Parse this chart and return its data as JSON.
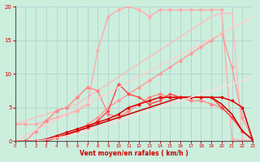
{
  "title": "",
  "xlabel": "Vent moyen/en rafales ( km/h )",
  "ylabel": "",
  "background_color": "#cceedd",
  "grid_color": "#aacccc",
  "xlim": [
    0,
    23
  ],
  "ylim": [
    0,
    20
  ],
  "yticks": [
    0,
    5,
    10,
    15,
    20
  ],
  "xticks": [
    0,
    1,
    2,
    3,
    4,
    5,
    6,
    7,
    8,
    9,
    10,
    11,
    12,
    13,
    14,
    15,
    16,
    17,
    18,
    19,
    20,
    21,
    22,
    23
  ],
  "series": [
    {
      "x": [
        0,
        1,
        2,
        3,
        4,
        5,
        6,
        7,
        8,
        9,
        10,
        11,
        12,
        13,
        14,
        15,
        16,
        17,
        18,
        19,
        20,
        21,
        22,
        23
      ],
      "y": [
        2.5,
        3,
        3.5,
        4,
        4.5,
        5,
        5.5,
        6.5,
        7.5,
        8.5,
        9.5,
        10.5,
        11.5,
        12.5,
        13.5,
        14.5,
        15.5,
        16.5,
        17.5,
        18.5,
        19.0,
        19.0,
        0.2,
        0.1
      ],
      "color": "#ffbbbb",
      "linewidth": 1.0,
      "marker": null,
      "markersize": 0,
      "linestyle": "-"
    },
    {
      "x": [
        0,
        1,
        2,
        3,
        4,
        5,
        6,
        7,
        8,
        9,
        10,
        11,
        12,
        13,
        14,
        15,
        16,
        17,
        18,
        19,
        20,
        21,
        22,
        23
      ],
      "y": [
        2.5,
        2.5,
        2.5,
        3.0,
        3.5,
        4.0,
        4.5,
        5.5,
        13.5,
        18.5,
        19.5,
        20,
        19.5,
        18.5,
        19.5,
        19.5,
        19.5,
        19.5,
        19.5,
        19.5,
        19.5,
        0.3,
        0.1,
        0.0
      ],
      "color": "#ffaaaa",
      "linewidth": 1.0,
      "marker": "o",
      "markersize": 2.0,
      "linestyle": "-"
    },
    {
      "x": [
        0,
        1,
        2,
        3,
        4,
        5,
        6,
        7,
        8,
        9,
        10,
        11,
        12,
        13,
        14,
        15,
        16,
        17,
        18,
        19,
        20,
        21,
        22,
        23
      ],
      "y": [
        0,
        0,
        0,
        0,
        0.5,
        1,
        1.5,
        2.5,
        3.5,
        5,
        6,
        7,
        8,
        9,
        10,
        11,
        12,
        13,
        14,
        15,
        16,
        11,
        3.5,
        0.3
      ],
      "color": "#ff9999",
      "linewidth": 1.0,
      "marker": "o",
      "markersize": 2.0,
      "linestyle": "-"
    },
    {
      "x": [
        0,
        1,
        2,
        3,
        4,
        5,
        6,
        7,
        8,
        9,
        10,
        11,
        12,
        13,
        14,
        15,
        16,
        17,
        18,
        19,
        20,
        21,
        22,
        23
      ],
      "y": [
        0,
        0,
        1.5,
        3,
        4.5,
        5,
        6.5,
        8,
        7.5,
        4,
        3.5,
        4.5,
        5.5,
        6.5,
        7,
        6.5,
        6.5,
        6,
        6,
        5.5,
        5,
        3.5,
        1.5,
        0.2
      ],
      "color": "#ff8888",
      "linewidth": 1.0,
      "marker": "D",
      "markersize": 2.0,
      "linestyle": "-"
    },
    {
      "x": [
        0,
        1,
        2,
        3,
        4,
        5,
        6,
        7,
        8,
        9,
        10,
        11,
        12,
        13,
        14,
        15,
        16,
        17,
        18,
        19,
        20,
        21,
        22,
        23
      ],
      "y": [
        0,
        0,
        0,
        0,
        0.5,
        1,
        1.5,
        2,
        3,
        4.5,
        8.5,
        7,
        6.5,
        5.5,
        6,
        7,
        6.5,
        6.5,
        6.5,
        6.5,
        5,
        3.5,
        1.5,
        0.2
      ],
      "color": "#ff4444",
      "linewidth": 1.0,
      "marker": "+",
      "markersize": 3.0,
      "linestyle": "-"
    },
    {
      "x": [
        0,
        1,
        2,
        3,
        4,
        5,
        6,
        7,
        8,
        9,
        10,
        11,
        12,
        13,
        14,
        15,
        16,
        17,
        18,
        19,
        20,
        21,
        22,
        23
      ],
      "y": [
        0,
        0,
        0,
        0.2,
        0.5,
        1,
        1.5,
        2,
        2.5,
        3,
        3.5,
        4,
        4.5,
        5,
        5.5,
        6,
        6.5,
        6.5,
        6.5,
        6.5,
        5.5,
        4,
        1.5,
        0.2
      ],
      "color": "#cc0000",
      "linewidth": 1.1,
      "marker": null,
      "markersize": 0,
      "linestyle": "-"
    },
    {
      "x": [
        0,
        1,
        2,
        3,
        4,
        5,
        6,
        7,
        8,
        9,
        10,
        11,
        12,
        13,
        14,
        15,
        16,
        17,
        18,
        19,
        20,
        21,
        22,
        23
      ],
      "y": [
        0,
        0,
        0,
        0.3,
        0.8,
        1.3,
        1.8,
        2.3,
        2.8,
        3.3,
        4,
        5,
        5.5,
        6,
        6.5,
        6.5,
        6.5,
        6.5,
        6.5,
        6.5,
        6.5,
        6.0,
        5.0,
        0.2
      ],
      "color": "#dd0000",
      "linewidth": 1.1,
      "marker": "s",
      "markersize": 2.0,
      "linestyle": "-"
    },
    {
      "x": [
        0,
        1,
        2,
        3,
        4,
        5,
        6,
        7,
        8,
        9,
        10,
        11,
        12,
        13,
        14,
        15,
        16,
        17,
        18,
        19,
        20,
        21,
        22,
        23
      ],
      "y": [
        0,
        0,
        0,
        0.2,
        0.5,
        0.8,
        1.1,
        1.5,
        2.0,
        2.5,
        3.0,
        3.5,
        4.0,
        4.5,
        5.0,
        5.5,
        6.0,
        6.5,
        7.0,
        7.5,
        8.0,
        8.5,
        9.0,
        9.5
      ],
      "color": "#ffdddd",
      "linewidth": 1.0,
      "marker": null,
      "markersize": 0,
      "linestyle": "-"
    },
    {
      "x": [
        0,
        1,
        2,
        3,
        4,
        5,
        6,
        7,
        8,
        9,
        10,
        11,
        12,
        13,
        14,
        15,
        16,
        17,
        18,
        19,
        20,
        21,
        22,
        23
      ],
      "y": [
        0,
        0.8,
        1.6,
        2.4,
        3.2,
        4.0,
        4.8,
        5.6,
        6.4,
        7.2,
        8.0,
        8.8,
        9.6,
        10.4,
        11.2,
        12.0,
        12.8,
        13.6,
        14.4,
        15.2,
        16.0,
        16.8,
        17.6,
        18.4
      ],
      "color": "#ffcccc",
      "linewidth": 1.0,
      "marker": null,
      "markersize": 0,
      "linestyle": "-"
    }
  ]
}
